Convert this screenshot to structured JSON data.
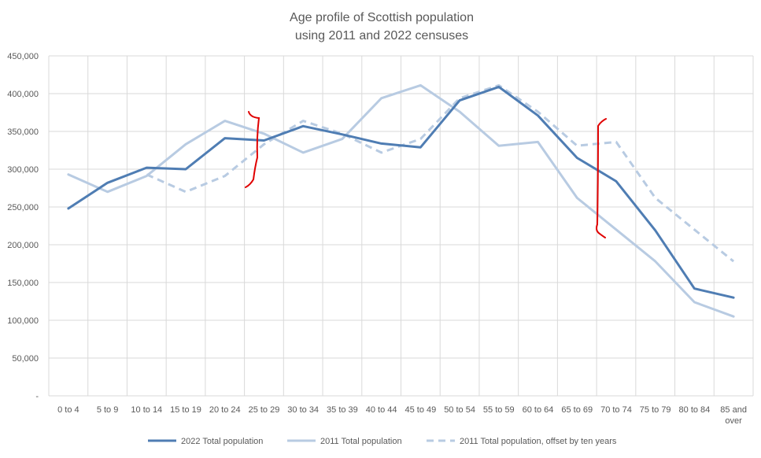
{
  "chart_data": {
    "type": "line",
    "title_lines": [
      "Age profile of Scottish population",
      "using 2011 and 2022 censuses"
    ],
    "categories": [
      "0 to  4",
      "5 to 9",
      "10 to 14",
      "15 to 19",
      "20 to 24",
      "25 to 29",
      "30 to 34",
      "35 to 39",
      "40 to 44",
      "45 to 49",
      "50 to 54",
      "55 to 59",
      "60 to 64",
      "65 to 69",
      "70 to 74",
      "75 to 79",
      "80 to 84",
      "85 and over"
    ],
    "category_lines": [
      [
        "0 to  4"
      ],
      [
        "5 to 9"
      ],
      [
        "10 to 14"
      ],
      [
        "15 to 19"
      ],
      [
        "20 to 24"
      ],
      [
        "25 to 29"
      ],
      [
        "30 to 34"
      ],
      [
        "35 to 39"
      ],
      [
        "40 to 44"
      ],
      [
        "45 to 49"
      ],
      [
        "50 to 54"
      ],
      [
        "55 to 59"
      ],
      [
        "60 to 64"
      ],
      [
        "65 to 69"
      ],
      [
        "70 to 74"
      ],
      [
        "75 to 79"
      ],
      [
        "80 to 84"
      ],
      [
        "85 and",
        "over"
      ]
    ],
    "ylim": [
      0,
      450000
    ],
    "y_ticks": [
      0,
      50000,
      100000,
      150000,
      200000,
      250000,
      300000,
      350000,
      400000,
      450000
    ],
    "y_tick_labels": [
      "-",
      "50,000",
      "100,000",
      "150,000",
      "200,000",
      "250,000",
      "300,000",
      "350,000",
      "400,000",
      "450,000"
    ],
    "grid": true,
    "legend_position": "bottom",
    "series": [
      {
        "name": "2022 Total population",
        "color": "#4f7db3",
        "style": "solid",
        "values": [
          248000,
          282000,
          302000,
          300000,
          341000,
          338000,
          357000,
          346000,
          334000,
          329000,
          391000,
          409000,
          371000,
          315000,
          284000,
          219000,
          142000,
          130000
        ]
      },
      {
        "name": "2011 Total population",
        "color": "#b8cbe2",
        "style": "solid",
        "values": [
          293000,
          270000,
          291000,
          333000,
          364000,
          347000,
          322000,
          340000,
          394000,
          411000,
          376000,
          331000,
          336000,
          262000,
          220000,
          178000,
          124000,
          105000
        ]
      },
      {
        "name": "2011 Total population, offset by ten years",
        "color": "#b8cbe2",
        "style": "dashed",
        "values": [
          null,
          null,
          293000,
          270000,
          291000,
          333000,
          364000,
          347000,
          322000,
          340000,
          394000,
          411000,
          376000,
          331000,
          336000,
          262000,
          220000,
          178000
        ]
      }
    ],
    "annotations": [
      {
        "type": "hand-drawn-bracket",
        "color": "#e00000",
        "near_category": "25 to 29"
      },
      {
        "type": "hand-drawn-bracket",
        "color": "#e00000",
        "near_category": "70 to 74"
      }
    ]
  }
}
